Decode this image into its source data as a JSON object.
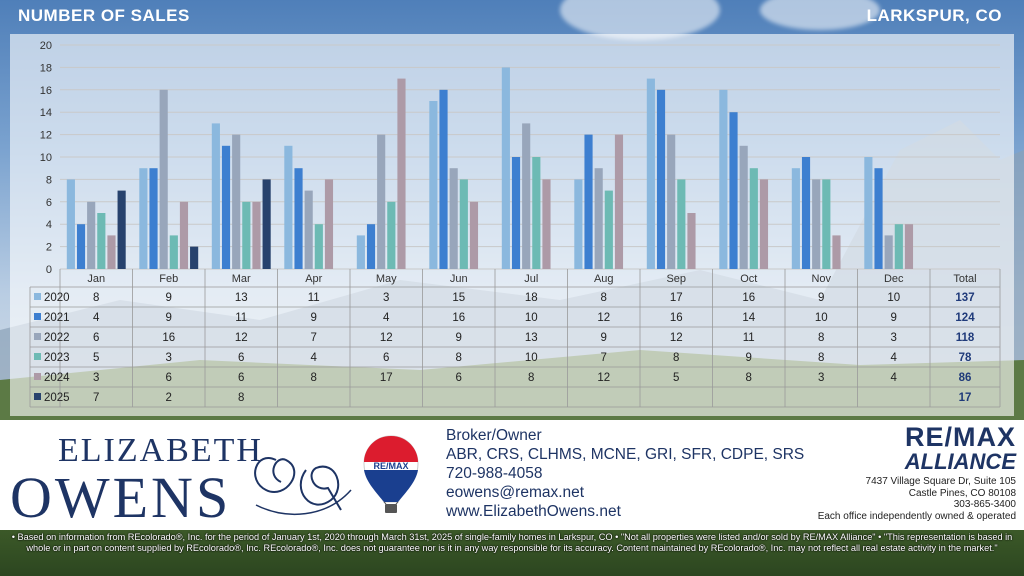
{
  "header": {
    "title": "NUMBER OF SALES",
    "location": "LARKSPUR, CO"
  },
  "chart_data": {
    "type": "bar",
    "categories": [
      "Jan",
      "Feb",
      "Mar",
      "Apr",
      "May",
      "Jun",
      "Jul",
      "Aug",
      "Sep",
      "Oct",
      "Nov",
      "Dec"
    ],
    "ylim": [
      0,
      20
    ],
    "yticks": [
      0,
      2,
      4,
      6,
      8,
      10,
      12,
      14,
      16,
      18,
      20
    ],
    "grid": true,
    "total_label": "Total",
    "series": [
      {
        "name": "2020",
        "color": "#8bb8de",
        "values": [
          8,
          9,
          13,
          11,
          3,
          15,
          18,
          8,
          17,
          16,
          9,
          10
        ],
        "total": 137
      },
      {
        "name": "2021",
        "color": "#3d7fd0",
        "values": [
          4,
          9,
          11,
          9,
          4,
          16,
          10,
          12,
          16,
          14,
          10,
          9
        ],
        "total": 124
      },
      {
        "name": "2022",
        "color": "#98a6bb",
        "values": [
          6,
          16,
          12,
          7,
          12,
          9,
          13,
          9,
          12,
          11,
          8,
          3
        ],
        "total": 118
      },
      {
        "name": "2023",
        "color": "#6dbab4",
        "values": [
          5,
          3,
          6,
          4,
          6,
          8,
          10,
          7,
          8,
          9,
          8,
          4
        ],
        "total": 78
      },
      {
        "name": "2024",
        "color": "#ad9aa7",
        "values": [
          3,
          6,
          6,
          8,
          17,
          6,
          8,
          12,
          5,
          8,
          3,
          4
        ],
        "total": 86
      },
      {
        "name": "2025",
        "color": "#27426d",
        "values": [
          7,
          2,
          8,
          null,
          null,
          null,
          null,
          null,
          null,
          null,
          null,
          null
        ],
        "total": 17
      }
    ]
  },
  "contact": {
    "logo_line1": "ELIZABETH",
    "logo_line2": "OWENS",
    "balloon_text": "RE/MAX",
    "role": "Broker/Owner",
    "credentials": "ABR, CRS, CLHMS, MCNE, GRI, SFR, CDPE, SRS",
    "phone": "720-988-4058",
    "email": "eowens@remax.net",
    "website": "www.ElizabethOwens.net"
  },
  "brokerage": {
    "name": "RE/MAX",
    "sub": "ALLIANCE",
    "address1": "7437 Village Square Dr, Suite 105",
    "address2": "Castle Pines, CO 80108",
    "phone": "303-865-3400",
    "tagline": "Each office independently owned & operated"
  },
  "disclaimer": "• Based on information from REcolorado®, Inc. for the period of January 1st, 2020 through March 31st, 2025 of single-family homes in Larkspur, CO • \"Not all properties were listed and/or sold by RE/MAX Alliance\" • \"This representation is based in whole or in part on content supplied by REcolorado®, Inc. REcolorado®, Inc. does not guarantee nor is it in any way responsible for its accuracy. Content maintained by REcolorado®, Inc. may not reflect all real estate activity in the market.\""
}
